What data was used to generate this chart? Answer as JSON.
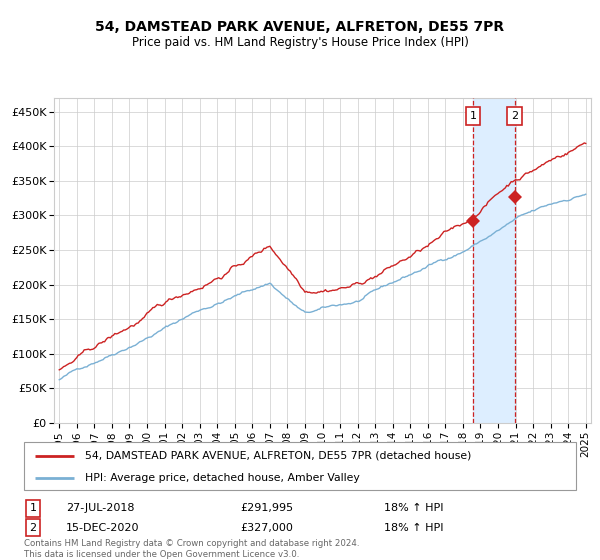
{
  "title": "54, DAMSTEAD PARK AVENUE, ALFRETON, DE55 7PR",
  "subtitle": "Price paid vs. HM Land Registry's House Price Index (HPI)",
  "hpi_color": "#7ab0d4",
  "price_color": "#cc2222",
  "marker_color": "#cc2222",
  "bg_color": "#ffffff",
  "grid_color": "#cccccc",
  "highlight_color": "#ddeeff",
  "vline_color": "#cc2222",
  "ylim": [
    0,
    470000
  ],
  "yticks": [
    0,
    50000,
    100000,
    150000,
    200000,
    250000,
    300000,
    350000,
    400000,
    450000
  ],
  "start_year": 1995,
  "end_year": 2025,
  "transaction1_year": 2018.57,
  "transaction1_value": 291995,
  "transaction2_year": 2020.96,
  "transaction2_value": 327000,
  "transaction1_label": "27-JUL-2018",
  "transaction1_price": "£291,995",
  "transaction1_hpi": "18% ↑ HPI",
  "transaction2_label": "15-DEC-2020",
  "transaction2_price": "£327,000",
  "transaction2_hpi": "18% ↑ HPI",
  "legend_line1": "54, DAMSTEAD PARK AVENUE, ALFRETON, DE55 7PR (detached house)",
  "legend_line2": "HPI: Average price, detached house, Amber Valley",
  "footer": "Contains HM Land Registry data © Crown copyright and database right 2024.\nThis data is licensed under the Open Government Licence v3.0."
}
